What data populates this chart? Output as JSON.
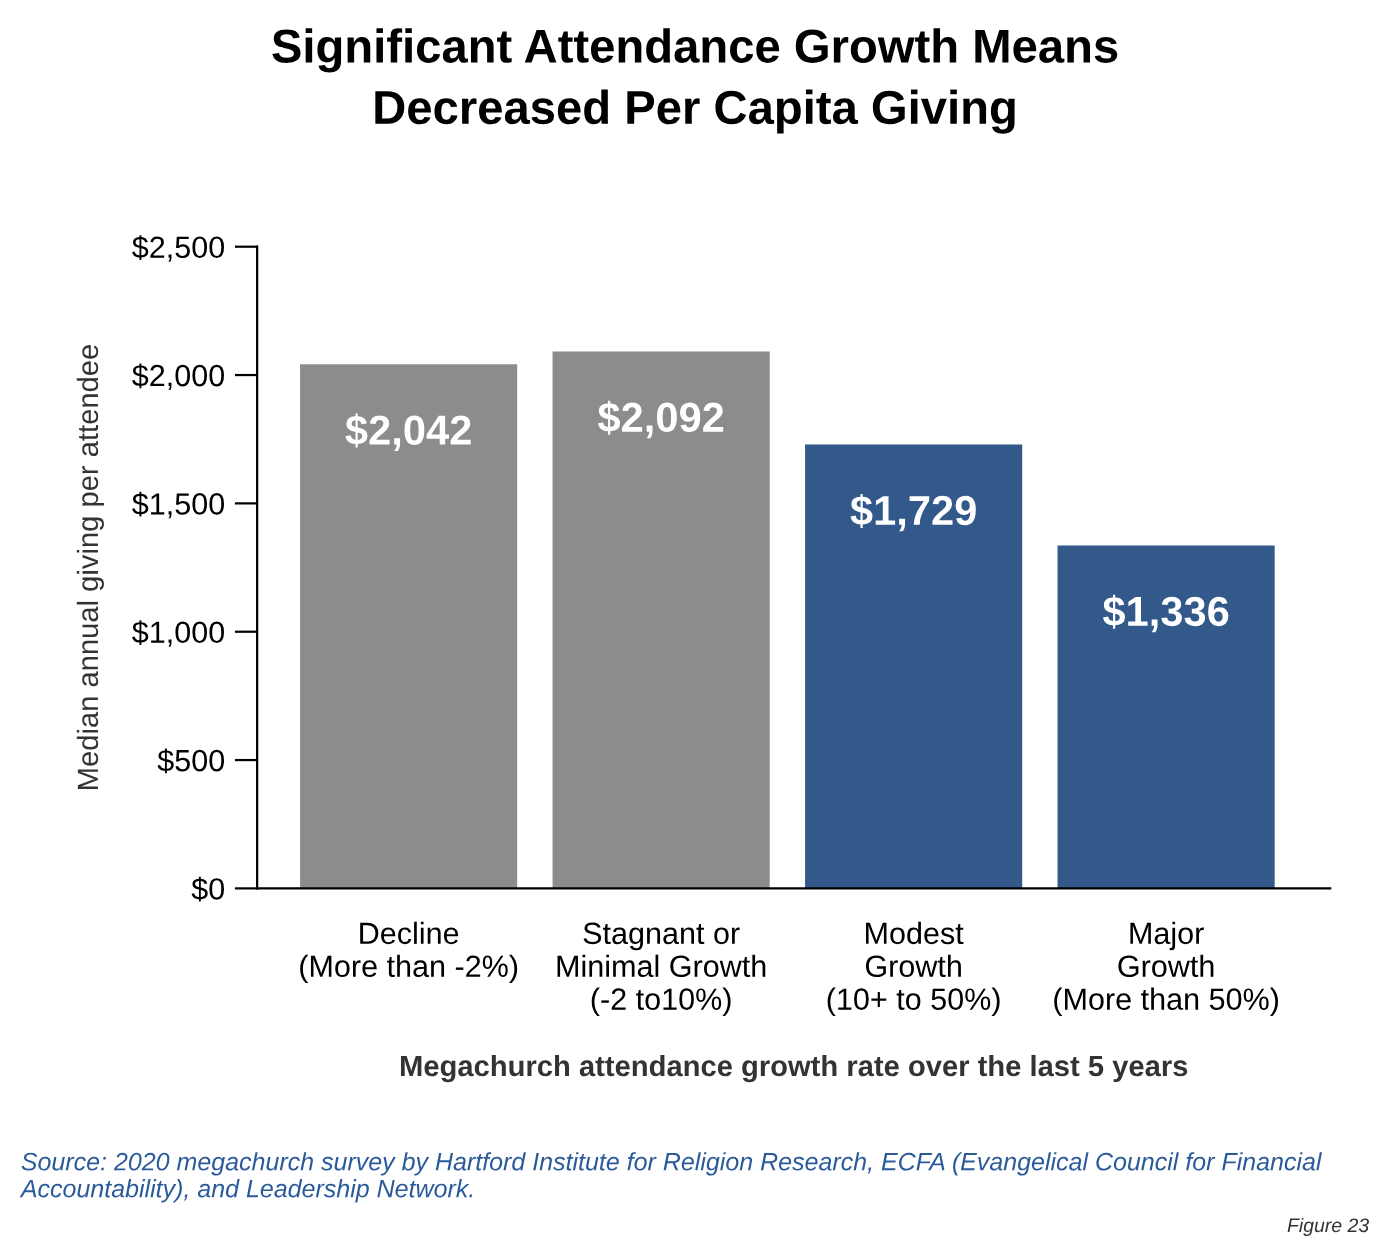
{
  "chart_data": {
    "type": "bar",
    "title": "Significant Attendance Growth Means\nDecreased Per Capita Giving",
    "xlabel": "Megachurch attendance growth rate over the last 5 years",
    "ylabel": "Median annual giving per attendee",
    "categories": [
      "Decline\n(More than -2%)",
      "Stagnant or\nMinimal Growth\n(-2 to10%)",
      "Modest\nGrowth\n(10+ to 50%)",
      "Major\nGrowth\n(More than 50%)"
    ],
    "values": [
      2042,
      2092,
      1729,
      1336
    ],
    "value_labels": [
      "$2,042",
      "$2,092",
      "$1,729",
      "$1,336"
    ],
    "colors": [
      "#8c8c8c",
      "#8c8c8c",
      "#33598a",
      "#33598a"
    ],
    "ylim": [
      0,
      2500
    ],
    "yticks": [
      {
        "value": 0,
        "label": "$0"
      },
      {
        "value": 500,
        "label": "$500"
      },
      {
        "value": 1000,
        "label": "$1,000"
      },
      {
        "value": 1500,
        "label": "$1,500"
      },
      {
        "value": 2000,
        "label": "$2,000"
      },
      {
        "value": 2500,
        "label": "$2,500"
      }
    ],
    "grid": false,
    "legend": false,
    "annotations": [
      "Source: 2020 megachurch survey by Hartford Institute for Religion Research, ECFA (Evangelical Council for Financial Accountability), and Leadership Network.",
      "Figure 23"
    ]
  }
}
